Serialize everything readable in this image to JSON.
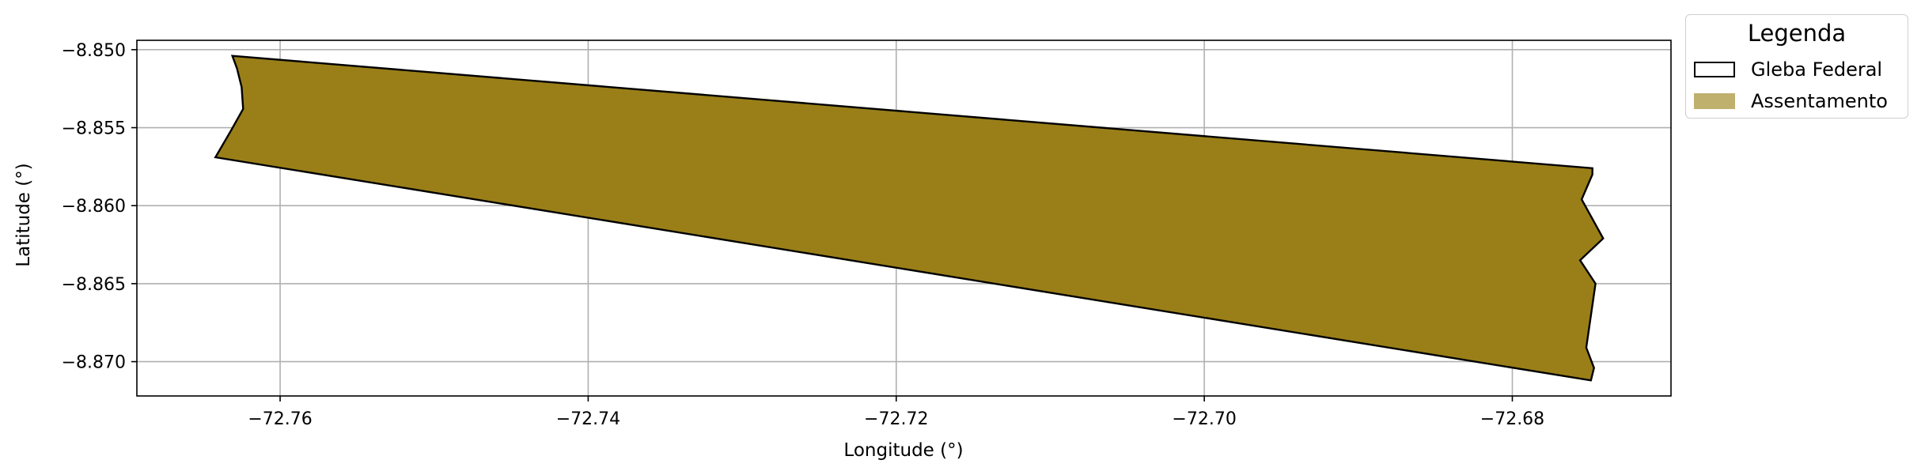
{
  "map": {
    "xlabel": "Longitude (°)",
    "ylabel": "Latitude (°)",
    "xlim": [
      -72.7693,
      -72.6697
    ],
    "ylim": [
      -8.8722,
      -8.8494
    ],
    "xticks": [
      -72.76,
      -72.74,
      -72.72,
      -72.7,
      -72.68
    ],
    "yticks": [
      -8.85,
      -8.855,
      -8.86,
      -8.865,
      -8.87
    ],
    "xtick_labels": [
      "−72.76",
      "−72.74",
      "−72.72",
      "−72.70",
      "−72.68"
    ],
    "ytick_labels": [
      "−8.850",
      "−8.855",
      "−8.860",
      "−8.865",
      "−8.870"
    ],
    "grid": true,
    "fill_color": "#9a7f19",
    "outline_color": "#000000",
    "polygon": [
      [
        -72.7631,
        -8.8504
      ],
      [
        -72.6748,
        -8.8576
      ],
      [
        -72.6748,
        -8.858
      ],
      [
        -72.6755,
        -8.8596
      ],
      [
        -72.6741,
        -8.8621
      ],
      [
        -72.6756,
        -8.8635
      ],
      [
        -72.6746,
        -8.865
      ],
      [
        -72.6752,
        -8.8691
      ],
      [
        -72.6747,
        -8.8704
      ],
      [
        -72.6749,
        -8.8712
      ],
      [
        -72.7642,
        -8.8569
      ],
      [
        -72.7632,
        -8.8552
      ],
      [
        -72.7624,
        -8.8538
      ],
      [
        -72.7625,
        -8.8524
      ],
      [
        -72.7628,
        -8.8512
      ]
    ]
  },
  "legend": {
    "title": "Legenda",
    "placement": "upper-right, outside axes",
    "items": [
      {
        "label": "Gleba Federal",
        "fill": "#ffffff",
        "edge": "#000000"
      },
      {
        "label": "Assentamento",
        "fill": "#bfb06e",
        "edge": "none"
      }
    ]
  }
}
